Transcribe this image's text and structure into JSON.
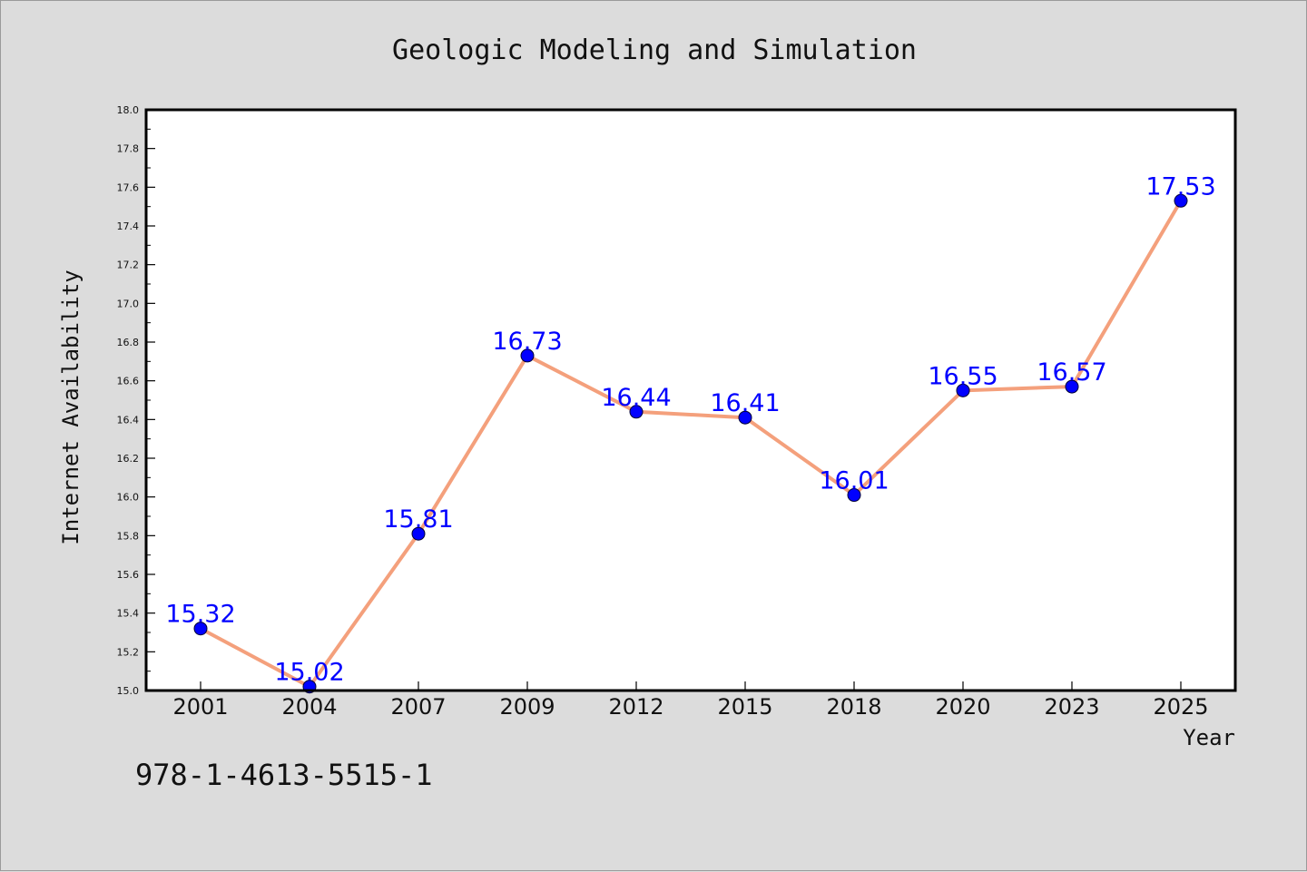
{
  "chart_data": {
    "type": "line",
    "title": "Geologic Modeling and Simulation",
    "xlabel": "Year",
    "ylabel": "Internet Availability",
    "categories": [
      "2001",
      "2004",
      "2007",
      "2009",
      "2012",
      "2015",
      "2018",
      "2020",
      "2023",
      "2025"
    ],
    "series": [
      {
        "values": [
          15.32,
          15.02,
          15.81,
          16.73,
          16.44,
          16.41,
          16.01,
          16.55,
          16.57,
          17.53
        ],
        "labels": [
          "15.32",
          "15.02",
          "15.81",
          "16.73",
          "16.44",
          "16.41",
          "16.01",
          "16.55",
          "16.57",
          "17.53"
        ],
        "line_color": "#f4a07c",
        "marker_color": "#0000ff"
      }
    ],
    "ylim": [
      15.0,
      18.0
    ],
    "yticks": [
      "15.0",
      "15.2",
      "15.4",
      "15.6",
      "15.8",
      "16.0",
      "16.2",
      "16.4",
      "16.6",
      "16.8",
      "17.0",
      "17.2",
      "17.4",
      "17.6",
      "17.8",
      "18.0"
    ],
    "grid": false,
    "legend": false
  },
  "footer": {
    "isbn": "978-1-4613-5515-1"
  },
  "colors": {
    "page_background": "#dcdcdc",
    "plot_background": "#ffffff",
    "axis": "#000000",
    "line": "#f4a07c",
    "marker": "#0000ff",
    "label": "#0000ff"
  }
}
